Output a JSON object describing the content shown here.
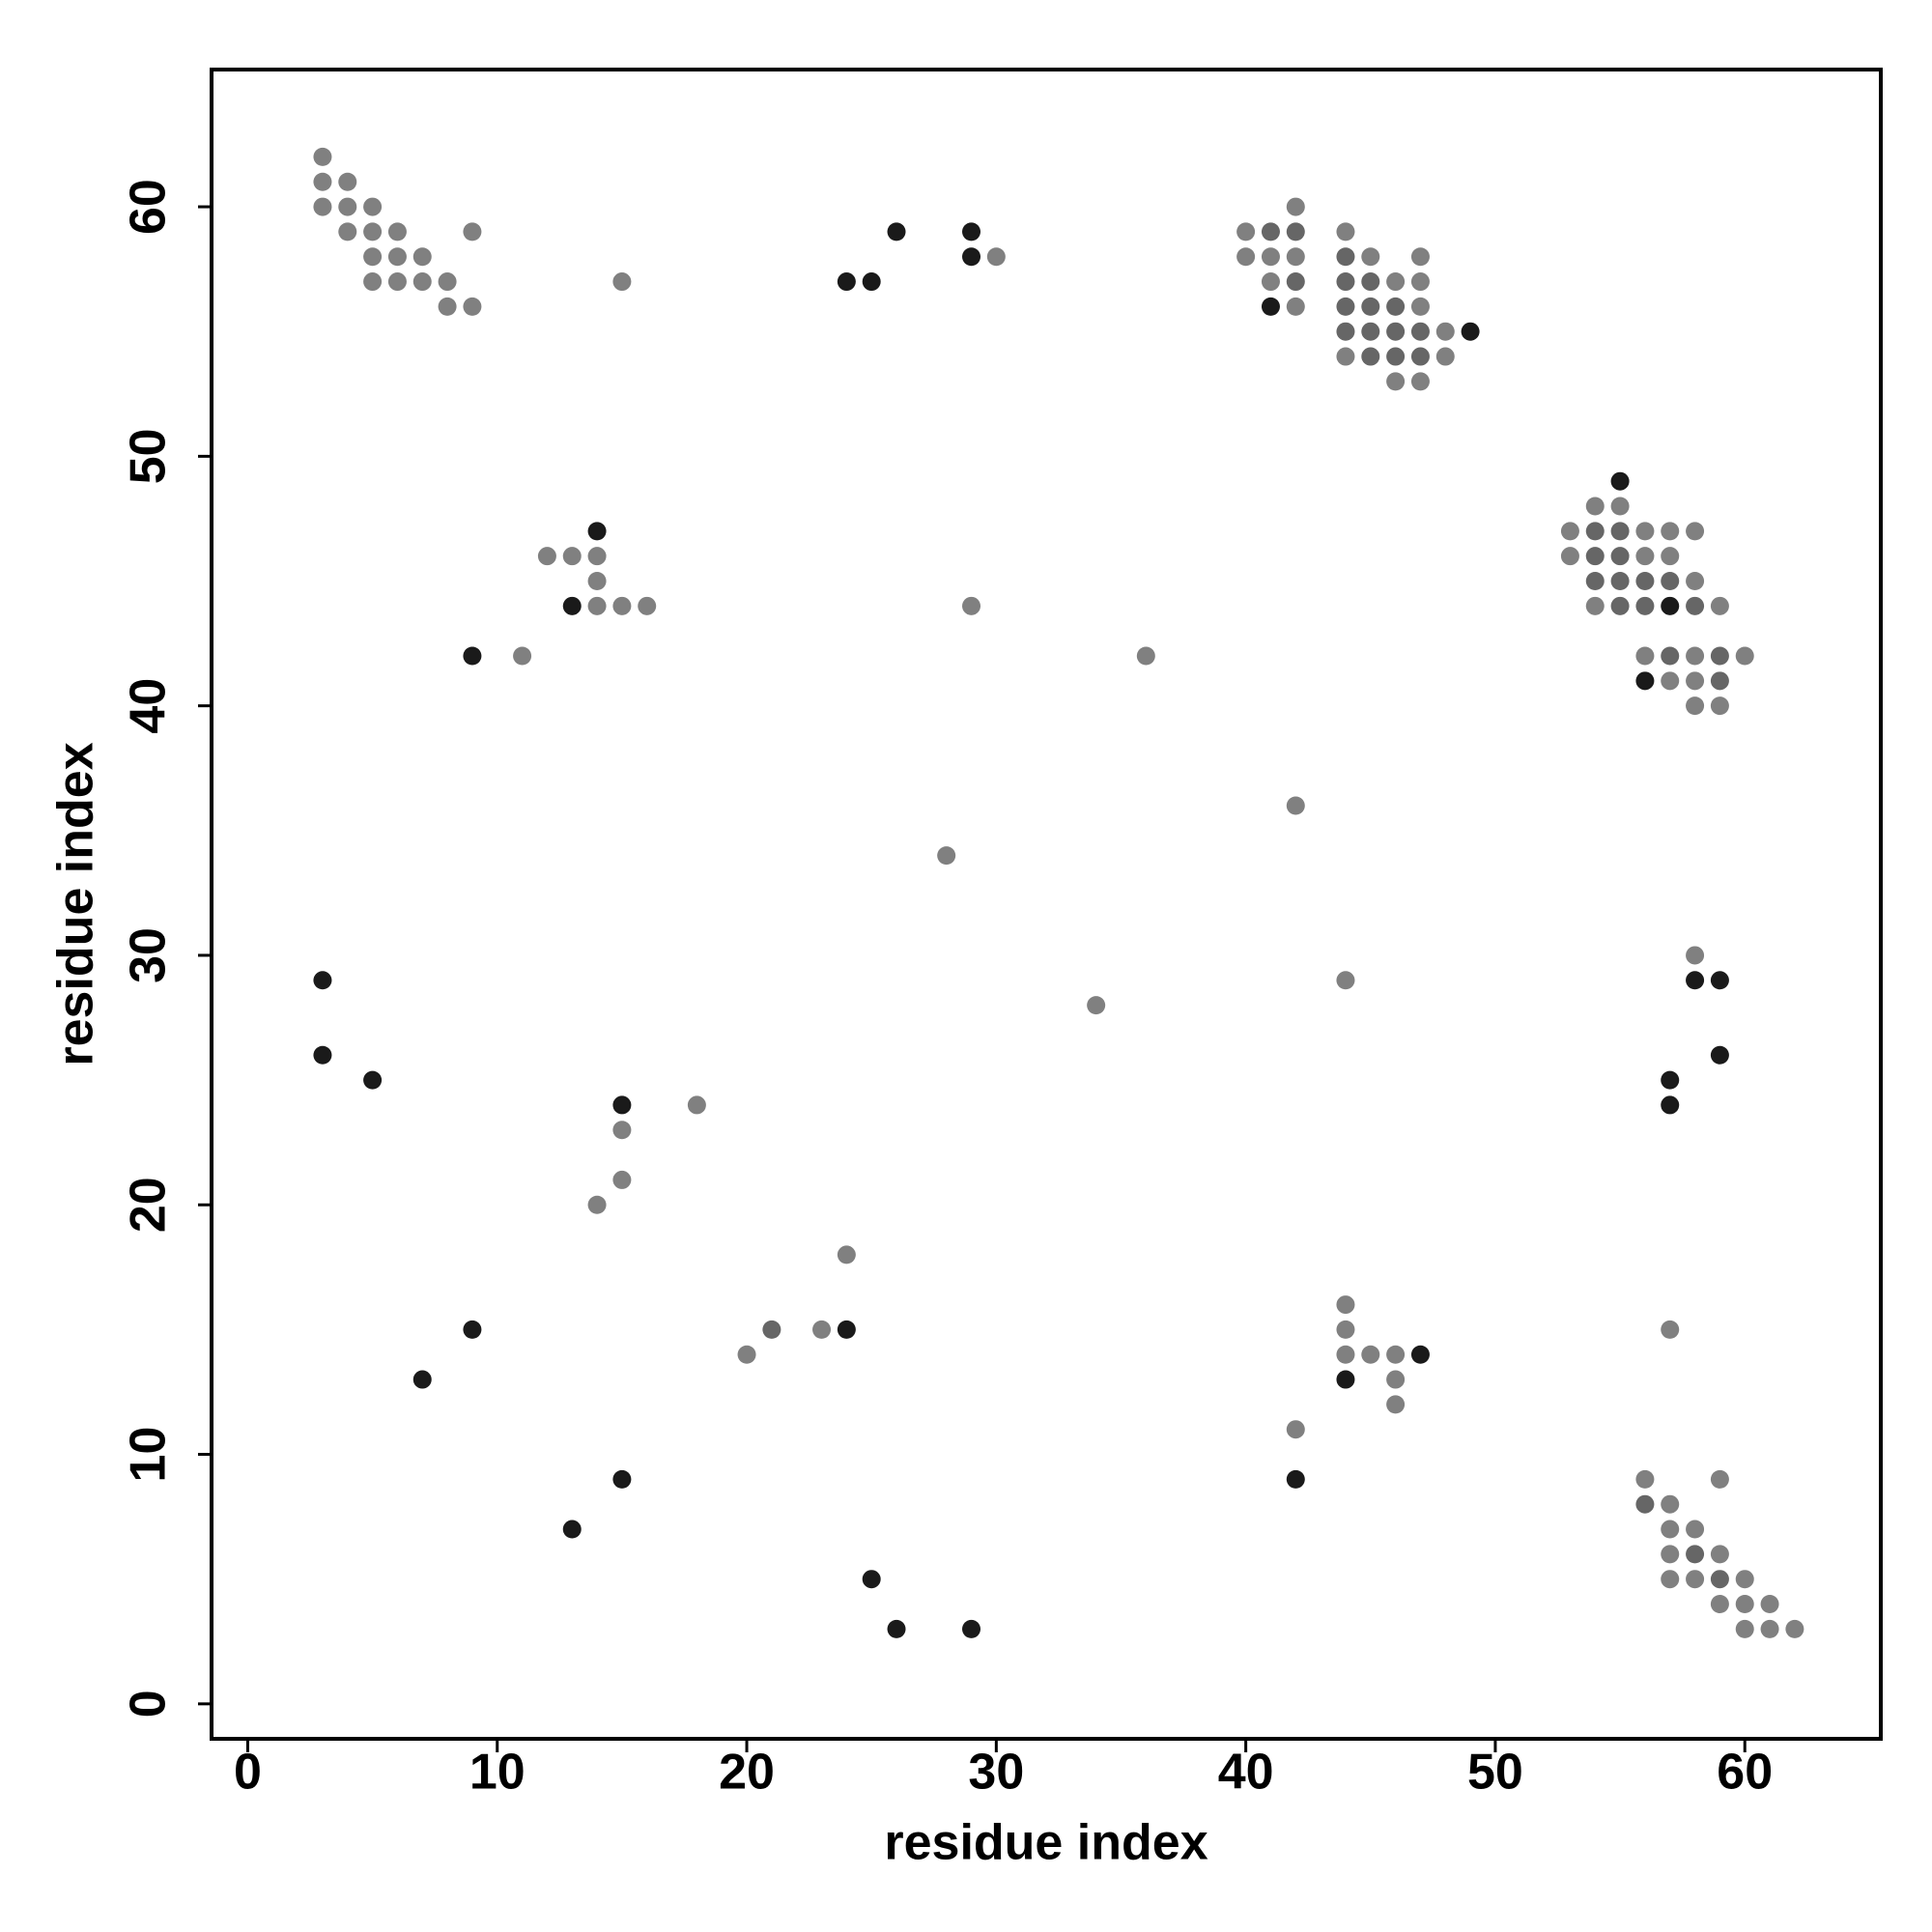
{
  "chart_data": {
    "type": "scatter",
    "x_label": "residue index",
    "y_label": "residue index",
    "xlim": [
      -1.45,
      65.45
    ],
    "ylim": [
      -1.4,
      65.5
    ],
    "xticks": [
      0,
      10,
      20,
      30,
      40,
      50,
      60
    ],
    "yticks": [
      0,
      10,
      20,
      30,
      40,
      50,
      60
    ],
    "series": [
      {
        "color": "#808080",
        "x": [
          3,
          3,
          4,
          3,
          4,
          5,
          4,
          5,
          6,
          9,
          5,
          6,
          7,
          5,
          6,
          7,
          8,
          8,
          9,
          15,
          30,
          40,
          42,
          40,
          41,
          42,
          41,
          42,
          44,
          45,
          47,
          46,
          47,
          47,
          48,
          44,
          48,
          46,
          47,
          12,
          13,
          14,
          14,
          14,
          15,
          16,
          11,
          29,
          36,
          54,
          55,
          53,
          56,
          57,
          58,
          53,
          56,
          57,
          58,
          54,
          59,
          56,
          58,
          60,
          57,
          58,
          58,
          59,
          42,
          28,
          34,
          44,
          58,
          15,
          18,
          15,
          14,
          24,
          20,
          23,
          44,
          44,
          44,
          45,
          46,
          46,
          46,
          42,
          57,
          56,
          59,
          57,
          57,
          58,
          57,
          59,
          57,
          58,
          60,
          59,
          60,
          61,
          60,
          61,
          62
        ],
        "y": [
          62,
          61,
          61,
          60,
          60,
          60,
          59,
          59,
          59,
          59,
          58,
          58,
          58,
          57,
          57,
          57,
          57,
          56,
          56,
          57,
          58,
          59,
          60,
          58,
          58,
          58,
          57,
          56,
          59,
          58,
          58,
          57,
          57,
          56,
          55,
          54,
          54,
          53,
          53,
          46,
          46,
          46,
          45,
          44,
          44,
          44,
          42,
          44,
          42,
          48,
          48,
          47,
          47,
          47,
          47,
          46,
          46,
          46,
          45,
          44,
          44,
          42,
          42,
          42,
          41,
          41,
          40,
          40,
          36,
          34,
          28,
          29,
          30,
          23,
          24,
          21,
          20,
          18,
          14,
          15,
          16,
          15,
          14,
          14,
          14,
          13,
          12,
          11,
          15,
          9,
          9,
          8,
          7,
          7,
          6,
          6,
          5,
          5,
          5,
          4,
          4,
          4,
          3,
          3,
          3
        ]
      },
      {
        "color": "#666666",
        "x": [
          41,
          42,
          42,
          44,
          44,
          45,
          44,
          45,
          46,
          44,
          45,
          46,
          47,
          45,
          46,
          47,
          54,
          55,
          54,
          55,
          54,
          55,
          56,
          57,
          55,
          56,
          58,
          57,
          59,
          59,
          21,
          56,
          58,
          59
        ],
        "y": [
          59,
          59,
          57,
          58,
          57,
          57,
          56,
          56,
          56,
          55,
          55,
          55,
          55,
          54,
          54,
          54,
          47,
          47,
          46,
          46,
          45,
          45,
          45,
          45,
          44,
          44,
          44,
          42,
          42,
          41,
          15,
          8,
          6,
          5
        ]
      },
      {
        "color": "#1a1a1a",
        "x": [
          24,
          25,
          26,
          29,
          29,
          41,
          49,
          14,
          13,
          9,
          55,
          56,
          57,
          58,
          59,
          59,
          57,
          57,
          3,
          3,
          5,
          15,
          9,
          7,
          24,
          47,
          44,
          42,
          15,
          13,
          25,
          26,
          29
        ],
        "y": [
          57,
          57,
          59,
          59,
          58,
          56,
          55,
          47,
          44,
          42,
          49,
          41,
          44,
          29,
          29,
          26,
          25,
          24,
          29,
          26,
          25,
          24,
          15,
          13,
          15,
          14,
          13,
          9,
          9,
          7,
          5,
          3,
          3
        ]
      }
    ]
  }
}
